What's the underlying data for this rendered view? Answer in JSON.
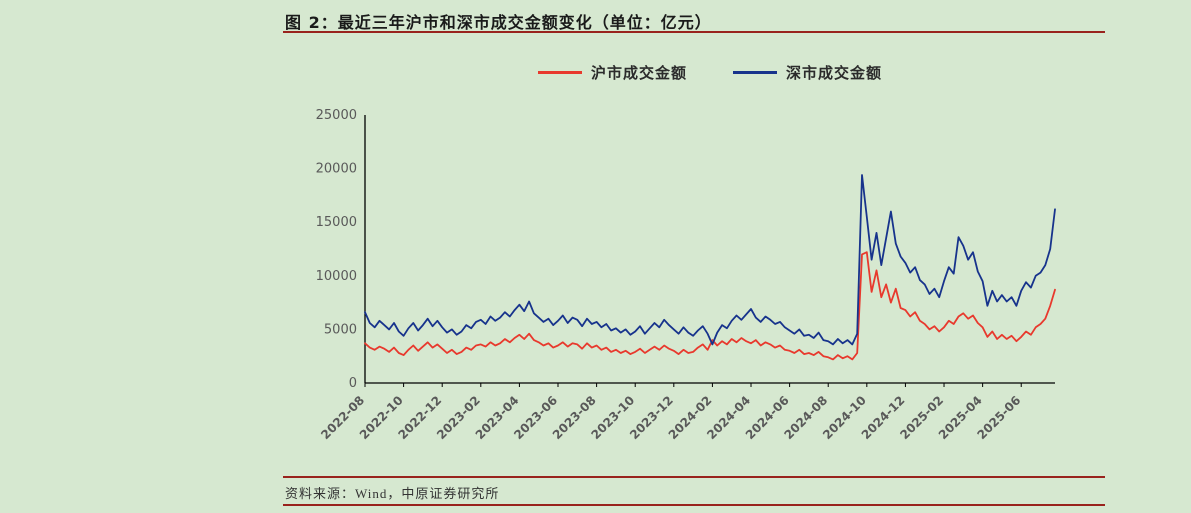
{
  "figure": {
    "title": "图 2：最近三年沪市和深市成交金额变化（单位：亿元）",
    "source": "资料来源：Wind，中原证券研究所"
  },
  "legend": {
    "items": [
      {
        "label": "沪市成交金额",
        "color": "#e8392d"
      },
      {
        "label": "深市成交金额",
        "color": "#17338c"
      }
    ]
  },
  "colors": {
    "background": "#d6e8d0",
    "rule": "#99231d",
    "axis": "#000000",
    "tick_text": "#595959",
    "sh_line": "#e8392d",
    "sz_line": "#17338c"
  },
  "chart_data": {
    "type": "line",
    "title": "最近三年沪市和深市成交金额变化（单位：亿元）",
    "xlabel": "",
    "ylabel": "",
    "ylim": [
      0,
      25000
    ],
    "yticks": [
      0,
      5000,
      10000,
      15000,
      20000,
      25000
    ],
    "x_tick_labels": [
      "2022-08",
      "2022-10",
      "2022-12",
      "2023-02",
      "2023-04",
      "2023-06",
      "2023-08",
      "2023-10",
      "2023-12",
      "2024-02",
      "2024-04",
      "2024-06",
      "2024-08",
      "2024-10",
      "2024-12",
      "2025-02",
      "2025-04",
      "2025-06"
    ],
    "x_tick_every_months": 2,
    "points_per_month": 4,
    "x_range": [
      "2022-08",
      "2025-07"
    ],
    "grid": false,
    "legend_position": "top-center",
    "series": [
      {
        "name": "沪市成交金额",
        "color": "#e8392d",
        "values": [
          3700,
          3300,
          3100,
          3400,
          3200,
          2900,
          3300,
          2800,
          2600,
          3100,
          3500,
          3000,
          3400,
          3800,
          3300,
          3600,
          3200,
          2800,
          3100,
          2700,
          2900,
          3300,
          3100,
          3500,
          3600,
          3400,
          3800,
          3500,
          3700,
          4100,
          3800,
          4200,
          4500,
          4100,
          4600,
          4000,
          3800,
          3500,
          3700,
          3300,
          3500,
          3800,
          3400,
          3700,
          3600,
          3200,
          3700,
          3300,
          3500,
          3100,
          3300,
          2900,
          3100,
          2800,
          3000,
          2700,
          2900,
          3200,
          2800,
          3100,
          3400,
          3100,
          3500,
          3200,
          3000,
          2700,
          3100,
          2800,
          2900,
          3300,
          3600,
          3100,
          4000,
          3500,
          3900,
          3600,
          4100,
          3800,
          4200,
          3900,
          3700,
          4000,
          3500,
          3800,
          3600,
          3300,
          3500,
          3100,
          3000,
          2800,
          3100,
          2700,
          2800,
          2600,
          2900,
          2500,
          2400,
          2200,
          2600,
          2300,
          2500,
          2200,
          2800,
          12000,
          12200,
          8500,
          10500,
          8000,
          9200,
          7500,
          8800,
          7000,
          6800,
          6200,
          6600,
          5800,
          5500,
          5000,
          5300,
          4800,
          5200,
          5800,
          5500,
          6200,
          6500,
          6000,
          6300,
          5600,
          5200,
          4300,
          4800,
          4100,
          4500,
          4100,
          4400,
          3900,
          4300,
          4800,
          4500,
          5200,
          5500,
          6000,
          7200,
          8700
        ]
      },
      {
        "name": "深市成交金额",
        "color": "#17338c",
        "values": [
          6600,
          5600,
          5200,
          5800,
          5400,
          5000,
          5600,
          4800,
          4400,
          5100,
          5600,
          4900,
          5400,
          6000,
          5300,
          5800,
          5200,
          4700,
          5000,
          4500,
          4800,
          5400,
          5100,
          5700,
          5900,
          5500,
          6200,
          5800,
          6100,
          6600,
          6200,
          6800,
          7300,
          6700,
          7600,
          6500,
          6100,
          5700,
          6000,
          5400,
          5800,
          6300,
          5600,
          6100,
          5900,
          5300,
          6000,
          5500,
          5700,
          5200,
          5500,
          4900,
          5100,
          4700,
          5000,
          4500,
          4800,
          5300,
          4600,
          5100,
          5600,
          5200,
          5900,
          5400,
          5000,
          4600,
          5200,
          4700,
          4400,
          4900,
          5300,
          4600,
          3600,
          4700,
          5400,
          5100,
          5800,
          6300,
          5900,
          6400,
          6900,
          6100,
          5700,
          6200,
          5900,
          5500,
          5700,
          5200,
          4900,
          4600,
          5000,
          4400,
          4500,
          4200,
          4700,
          4000,
          3900,
          3600,
          4100,
          3700,
          4000,
          3600,
          4600,
          19400,
          15500,
          11500,
          14000,
          11000,
          13500,
          16000,
          13000,
          11800,
          11200,
          10300,
          10800,
          9600,
          9200,
          8300,
          8800,
          8000,
          9500,
          10800,
          10200,
          13600,
          12800,
          11500,
          12200,
          10400,
          9500,
          7200,
          8600,
          7600,
          8200,
          7600,
          8000,
          7200,
          8600,
          9400,
          8900,
          10000,
          10300,
          11000,
          12500,
          16200
        ]
      }
    ]
  }
}
